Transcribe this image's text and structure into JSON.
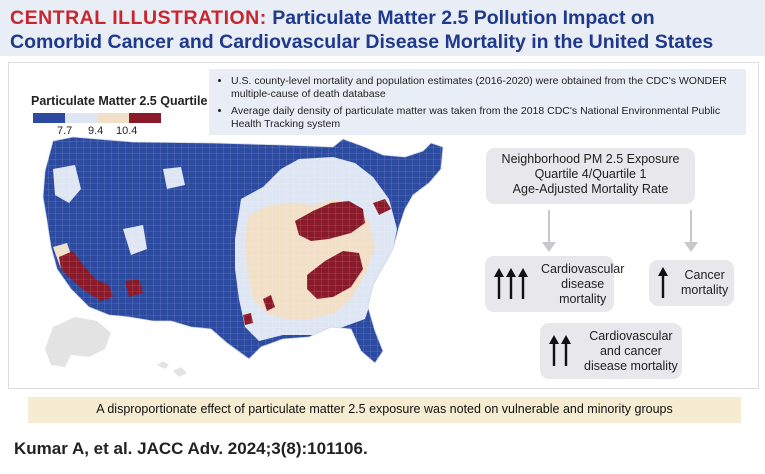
{
  "title": {
    "lead": "CENTRAL ILLUSTRATION:",
    "line1_rest": "Particulate Matter 2.5 Pollution Impact on",
    "line2": "Comorbid Cancer and Cardiovascular Disease Mortality in the United States"
  },
  "legend": {
    "title": "Particulate Matter 2.5 Quartile",
    "ticks": [
      "7.7",
      "9.4",
      "10.4"
    ],
    "colors": [
      "#2c4aa0",
      "#dfe6f3",
      "#f1dfc8",
      "#8a1a2a"
    ]
  },
  "bullets": [
    "U.S. county-level mortality and population estimates (2016-2020) were obtained from the CDC's WONDER multiple-cause of death database",
    "Average daily density of particulate matter was taken from the 2018 CDC's National Environmental Public Health Tracking system"
  ],
  "exposure_box": {
    "lines": [
      "Neighborhood PM 2.5 Exposure",
      "Quartile 4/Quartile 1",
      "Age-Adjusted Mortality Rate"
    ]
  },
  "outcomes": {
    "cardiovascular": {
      "arrow_count": 3,
      "lines": [
        "Cardiovascular",
        "disease",
        "mortality"
      ]
    },
    "cancer": {
      "arrow_count": 1,
      "lines": [
        "Cancer",
        "mortality"
      ]
    },
    "combined": {
      "arrow_count": 2,
      "lines": [
        "Cardiovascular",
        "and cancer",
        "disease mortality"
      ]
    }
  },
  "footer": "A disproportionate effect of particulate matter 2.5 exposure was noted on vulnerable and minority groups",
  "citation": "Kumar A, et al. JACC Adv. 2024;3(8):101106."
}
